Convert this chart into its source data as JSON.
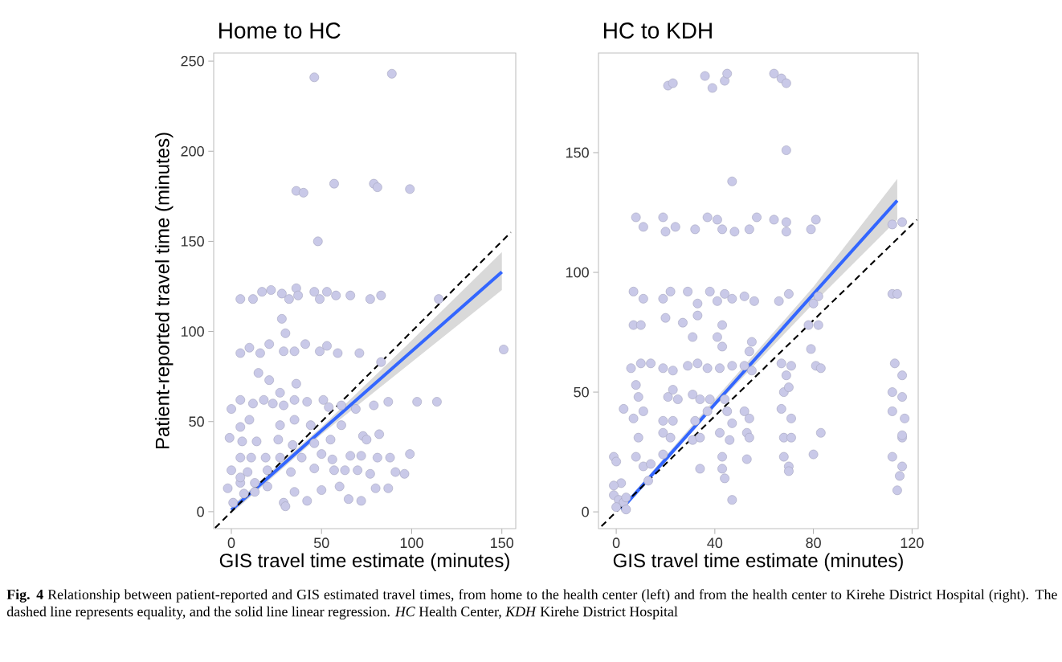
{
  "chart_data": [
    {
      "type": "scatter",
      "title": "Home to HC",
      "xlabel": "GIS travel time estimate (minutes)",
      "ylabel": "Patient-reported travel time (minutes)",
      "xlim": [
        -9.8,
        157.7
      ],
      "ylim": [
        -9.4,
        254.5
      ],
      "xticks": [
        0,
        50,
        100,
        150
      ],
      "yticks": [
        0,
        50,
        100,
        150,
        200,
        250
      ],
      "annotations": [
        "**Fig. 4** Relationship between patient-reported and GIS estimated travel times, from home to the health center (left) and from the health center to Kirehe District Hospital (right). The dashed line represents equality, and the solid line linear regression. *HC* Health Center, *KDH* Kirehe District Hospital"
      ],
      "series": [
        {
          "marker": "circle",
          "color": "#c9c9e8",
          "x": [
            46,
            89,
            36,
            40,
            57,
            79,
            81,
            99,
            48,
            5,
            12,
            17,
            22,
            28,
            32,
            36,
            37,
            46,
            49,
            53,
            58,
            66,
            77,
            83,
            115,
            28,
            30,
            5,
            10,
            16,
            21,
            29,
            35,
            41,
            49,
            53,
            59,
            71,
            83,
            151,
            15,
            21,
            36,
            27,
            0,
            5,
            12,
            18,
            23,
            29,
            35,
            42,
            51,
            54,
            61,
            69,
            79,
            87,
            103,
            114,
            10,
            27,
            35,
            44,
            61,
            73,
            82,
            5,
            -1,
            6,
            14,
            26,
            34,
            46,
            55,
            75,
            5,
            11,
            19,
            27,
            39,
            50,
            56,
            66,
            72,
            81,
            88,
            99,
            0,
            9,
            20,
            33,
            46,
            57,
            63,
            70,
            77,
            91,
            96,
            -2,
            5,
            13,
            20,
            29,
            35,
            42,
            50,
            60,
            65,
            72,
            80,
            87,
            30,
            1,
            7,
            5,
            13
          ],
          "values": [
            241,
            243,
            178,
            177,
            182,
            182,
            180,
            179,
            150,
            118,
            118,
            122,
            123,
            121,
            118,
            124,
            120,
            122,
            118,
            122,
            120,
            120,
            118,
            120,
            118,
            107,
            99,
            88,
            91,
            88,
            93,
            89,
            89,
            93,
            89,
            92,
            88,
            88,
            83,
            90,
            77,
            73,
            71,
            66,
            57,
            62,
            60,
            62,
            60,
            59,
            62,
            61,
            62,
            58,
            59,
            57,
            59,
            61,
            61,
            61,
            51,
            48,
            51,
            48,
            48,
            42,
            43,
            47,
            41,
            39,
            39,
            40,
            37,
            38,
            40,
            40,
            30,
            30,
            30,
            30,
            30,
            32,
            29,
            31,
            31,
            30,
            30,
            32,
            23,
            22,
            23,
            22,
            24,
            23,
            23,
            23,
            21,
            22,
            21,
            13,
            16,
            11,
            14,
            5,
            11,
            6,
            12,
            14,
            7,
            6,
            13,
            13,
            3,
            5,
            10,
            19,
            16
          ]
        },
        {
          "type": "line",
          "marker": "none",
          "line_style": "solid",
          "color": "#3366ff",
          "x": [
            0,
            50,
            100,
            150
          ],
          "values": [
            1,
            45,
            89,
            133
          ],
          "lower": [
            -1,
            43,
            83,
            123
          ],
          "upper": [
            3,
            47,
            95,
            144
          ]
        },
        {
          "type": "line",
          "marker": "none",
          "line_style": "dashed",
          "color": "#000000",
          "x": [
            -9,
            155
          ],
          "values": [
            -9,
            155
          ]
        }
      ]
    },
    {
      "type": "scatter",
      "title": "HC to KDH",
      "xlabel": "GIS travel time estimate (minutes)",
      "xlim": [
        -7.2,
        122.5
      ],
      "ylim": [
        -7.0,
        191.6
      ],
      "xticks": [
        0,
        40,
        80,
        120
      ],
      "yticks": [
        0,
        50,
        100,
        150
      ],
      "series": [
        {
          "marker": "circle",
          "color": "#c9c9e8",
          "x": [
            21,
            23,
            36,
            39,
            44,
            45,
            64,
            67,
            69,
            69,
            47,
            8,
            11,
            19,
            20,
            24,
            32,
            37,
            41,
            43,
            48,
            54,
            57,
            64,
            69,
            69,
            79,
            81,
            112,
            116,
            7,
            11,
            19,
            22,
            29,
            33,
            38,
            41,
            44,
            47,
            52,
            56,
            66,
            70,
            80,
            112,
            114,
            7,
            10,
            20,
            27,
            33,
            43,
            31,
            41,
            43,
            55,
            54,
            79,
            78,
            82,
            82,
            6,
            10,
            14,
            19,
            23,
            29,
            33,
            37,
            42,
            47,
            52,
            55,
            67,
            71,
            69,
            81,
            83,
            113,
            116,
            8,
            9,
            21,
            23,
            25,
            31,
            34,
            38,
            44,
            52,
            54,
            68,
            70,
            67,
            71,
            3,
            7,
            11,
            19,
            23,
            32,
            37,
            45,
            47,
            112,
            116,
            112,
            117,
            9,
            19,
            22,
            31,
            34,
            42,
            46,
            53,
            54,
            68,
            71,
            83,
            116,
            116,
            -1,
            8,
            11,
            14,
            19,
            34,
            43,
            43,
            44,
            53,
            68,
            70,
            70,
            80,
            112,
            116,
            115,
            114,
            47,
            -1,
            1,
            3,
            0,
            4,
            2,
            -1,
            4,
            13,
            0
          ],
          "values": [
            178,
            179,
            182,
            177,
            180,
            183,
            183,
            181,
            179,
            151,
            138,
            123,
            119,
            123,
            117,
            119,
            118,
            123,
            122,
            118,
            117,
            118,
            123,
            122,
            121,
            117,
            118,
            122,
            120,
            121,
            92,
            89,
            89,
            92,
            92,
            87,
            92,
            88,
            91,
            89,
            90,
            88,
            88,
            91,
            87,
            91,
            91,
            78,
            78,
            81,
            79,
            82,
            78,
            73,
            73,
            69,
            71,
            67,
            68,
            78,
            78,
            90,
            60,
            62,
            62,
            60,
            59,
            61,
            62,
            60,
            60,
            61,
            61,
            59,
            62,
            61,
            57,
            61,
            60,
            62,
            57,
            53,
            48,
            48,
            51,
            47,
            49,
            47,
            47,
            47,
            42,
            39,
            50,
            52,
            43,
            39,
            43,
            39,
            42,
            38,
            38,
            38,
            42,
            42,
            37,
            50,
            48,
            42,
            39,
            31,
            33,
            31,
            30,
            31,
            33,
            30,
            33,
            31,
            31,
            31,
            33,
            31,
            32,
            23,
            23,
            19,
            20,
            24,
            18,
            23,
            18,
            14,
            22,
            23,
            19,
            17,
            24,
            23,
            19,
            15,
            9,
            5,
            7,
            5,
            4,
            2,
            6,
            12,
            11,
            1,
            13,
            21
          ]
        },
        {
          "type": "line",
          "marker": "none",
          "line_style": "solid",
          "color": "#3366ff",
          "x": [
            2,
            40,
            80,
            114
          ],
          "values": [
            1,
            45,
            91,
            130
          ],
          "lower": [
            0,
            44,
            87,
            122
          ],
          "upper": [
            2,
            47,
            94,
            139
          ]
        },
        {
          "type": "line",
          "marker": "none",
          "line_style": "dashed",
          "color": "#000000",
          "x": [
            -6,
            122
          ],
          "values": [
            -6,
            122
          ]
        }
      ]
    }
  ]
}
